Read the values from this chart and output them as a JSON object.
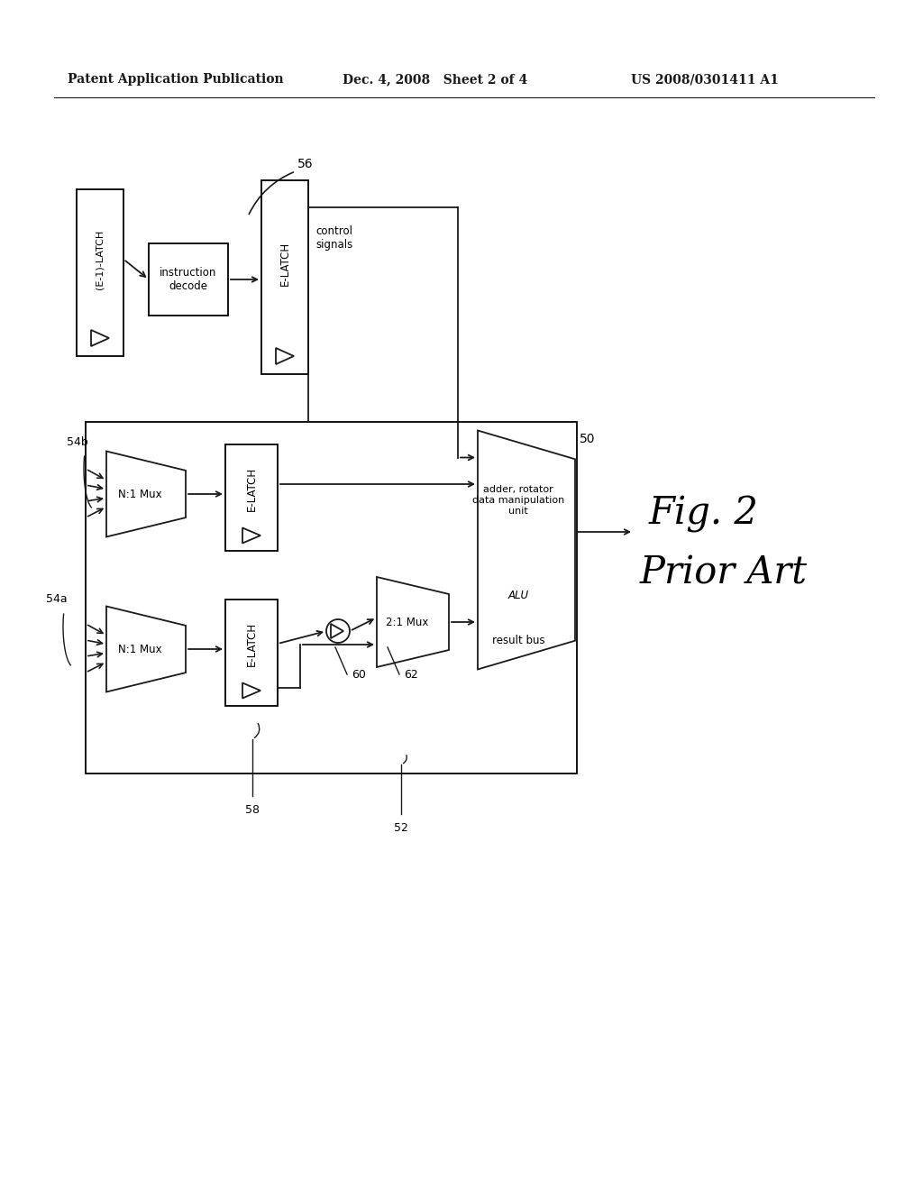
{
  "bg_color": "#ffffff",
  "line_color": "#1a1a1a",
  "header_left": "Patent Application Publication",
  "header_center": "Dec. 4, 2008   Sheet 2 of 4",
  "header_right": "US 2008/0301411 A1",
  "fig_label": "Fig. 2",
  "fig_sublabel": "Prior Art",
  "label_56": "56",
  "label_50": "50",
  "label_52": "52",
  "label_54a": "54a",
  "label_54b": "54b",
  "label_58": "58",
  "label_60": "60",
  "label_62": "62"
}
